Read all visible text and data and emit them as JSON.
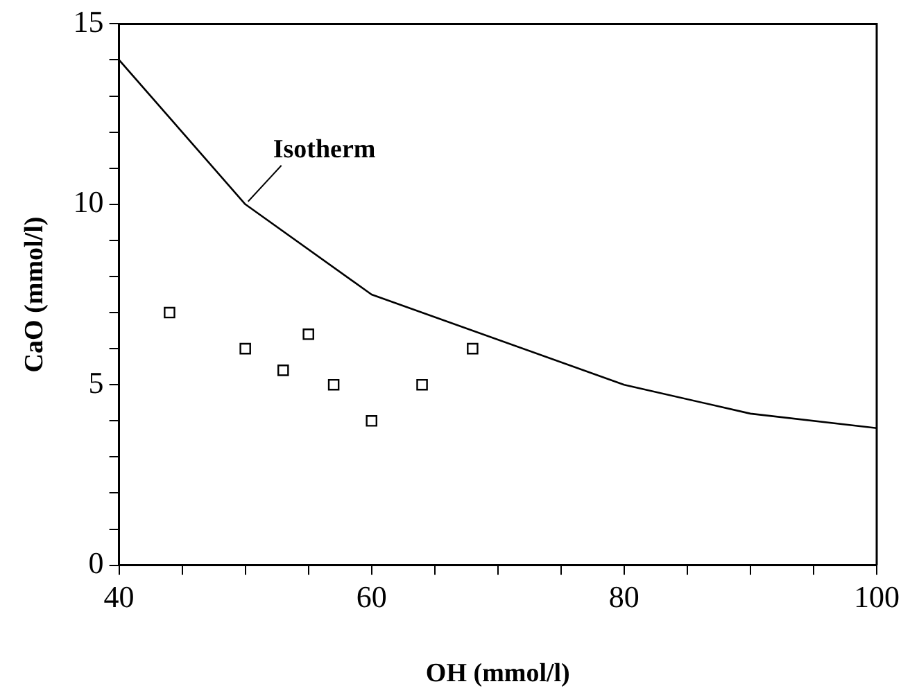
{
  "chart_data": {
    "type": "scatter",
    "xlabel": "OH (mmol/l)",
    "ylabel": "CaO (mmol/l)",
    "xlim": [
      40,
      100
    ],
    "ylim": [
      0,
      15
    ],
    "xticks": [
      40,
      {
        "value": 45,
        "label": null
      },
      {
        "value": 50,
        "label": null
      },
      {
        "value": 55,
        "label": null
      },
      60,
      {
        "value": 65,
        "label": null
      },
      {
        "value": 70,
        "label": null
      },
      {
        "value": 75,
        "label": null
      },
      80,
      {
        "value": 85,
        "label": null
      },
      {
        "value": 90,
        "label": null
      },
      {
        "value": 95,
        "label": null
      },
      100
    ],
    "yticks": [
      0,
      {
        "value": 1,
        "label": null
      },
      {
        "value": 2,
        "label": null
      },
      {
        "value": 3,
        "label": null
      },
      {
        "value": 4,
        "label": null
      },
      5,
      {
        "value": 6,
        "label": null
      },
      {
        "value": 7,
        "label": null
      },
      {
        "value": 8,
        "label": null
      },
      {
        "value": 9,
        "label": null
      },
      10,
      {
        "value": 11,
        "label": null
      },
      {
        "value": 12,
        "label": null
      },
      {
        "value": 13,
        "label": null
      },
      {
        "value": 14,
        "label": null
      },
      15
    ],
    "grid": false,
    "legend": false,
    "series": [
      {
        "type": "line",
        "name": "Isotherm",
        "color": "#000000",
        "x": [
          40,
          50,
          60,
          80,
          90,
          100
        ],
        "values": [
          14,
          10,
          7.5,
          5,
          4.2,
          3.8
        ],
        "marker": "none",
        "line_style": "solid"
      },
      {
        "type": "scatter",
        "color": "#000000",
        "x": [
          44,
          50,
          53,
          55,
          57,
          60,
          64,
          68
        ],
        "values": [
          7,
          6,
          5.4,
          6.4,
          5,
          4,
          5,
          6
        ],
        "marker": "square"
      }
    ]
  }
}
